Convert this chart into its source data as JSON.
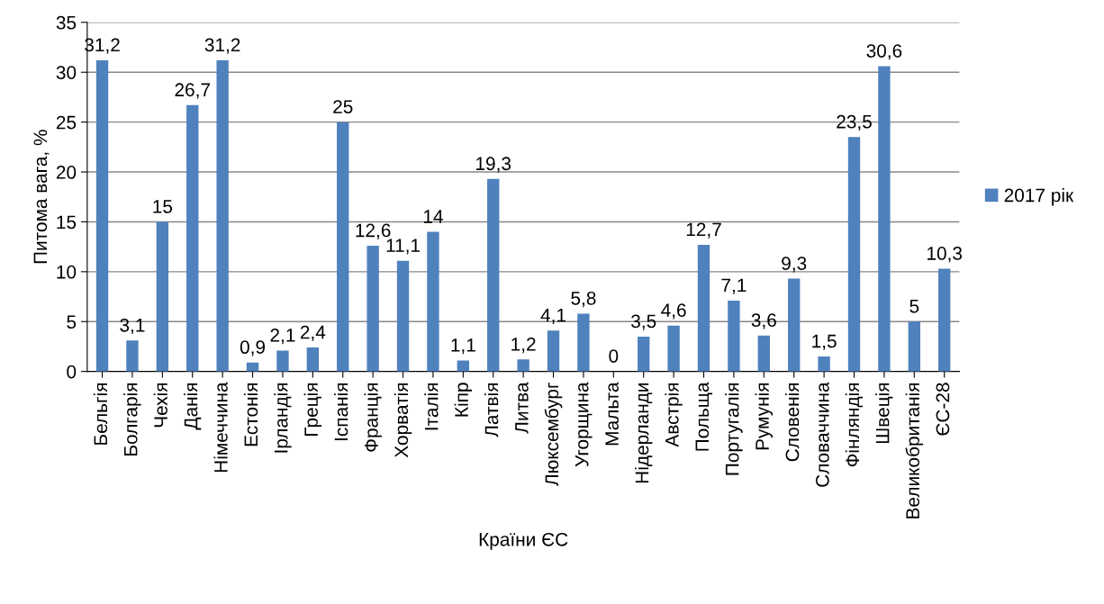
{
  "chart_data": {
    "type": "bar",
    "xlabel": "Країни ЄС",
    "ylabel": "Питома вага, %",
    "categories": [
      "Бельгія",
      "Болгарія",
      "Чехія",
      "Данія",
      "Німеччина",
      "Естонія",
      "Ірландія",
      "Греція",
      "Іспанія",
      "Франція",
      "Хорватія",
      "Італія",
      "Кіпр",
      "Латвія",
      "Литва",
      "Люксембург",
      "Угорщина",
      "Мальта",
      "Нідерланди",
      "Австрія",
      "Польща",
      "Португалія",
      "Румунія",
      "Словенія",
      "Словаччина",
      "Фінляндія",
      "Швеція",
      "Великобританія",
      "ЄС-28"
    ],
    "series": [
      {
        "name": "2017 рік",
        "color": "#4f81bd",
        "values": [
          31.2,
          3.1,
          15,
          26.7,
          31.2,
          0.9,
          2.1,
          2.4,
          25,
          12.6,
          11.1,
          14,
          1.1,
          19.3,
          1.2,
          4.1,
          5.8,
          0,
          3.5,
          4.6,
          12.7,
          7.1,
          3.6,
          9.3,
          1.5,
          23.5,
          30.6,
          5,
          10.3
        ],
        "value_labels": [
          "31,2",
          "3,1",
          "15",
          "26,7",
          "31,2",
          "0,9",
          "2,1",
          "2,4",
          "25",
          "12,6",
          "11,1",
          "14",
          "1,1",
          "19,3",
          "1,2",
          "4,1",
          "5,8",
          "0",
          "3,5",
          "4,6",
          "12,7",
          "7,1",
          "3,6",
          "9,3",
          "1,5",
          "23,5",
          "30,6",
          "5",
          "10,3"
        ]
      }
    ],
    "ylim": [
      0,
      35
    ],
    "yticks": [
      0,
      5,
      10,
      15,
      20,
      25,
      30,
      35
    ],
    "grid": "y",
    "legend": "right"
  }
}
